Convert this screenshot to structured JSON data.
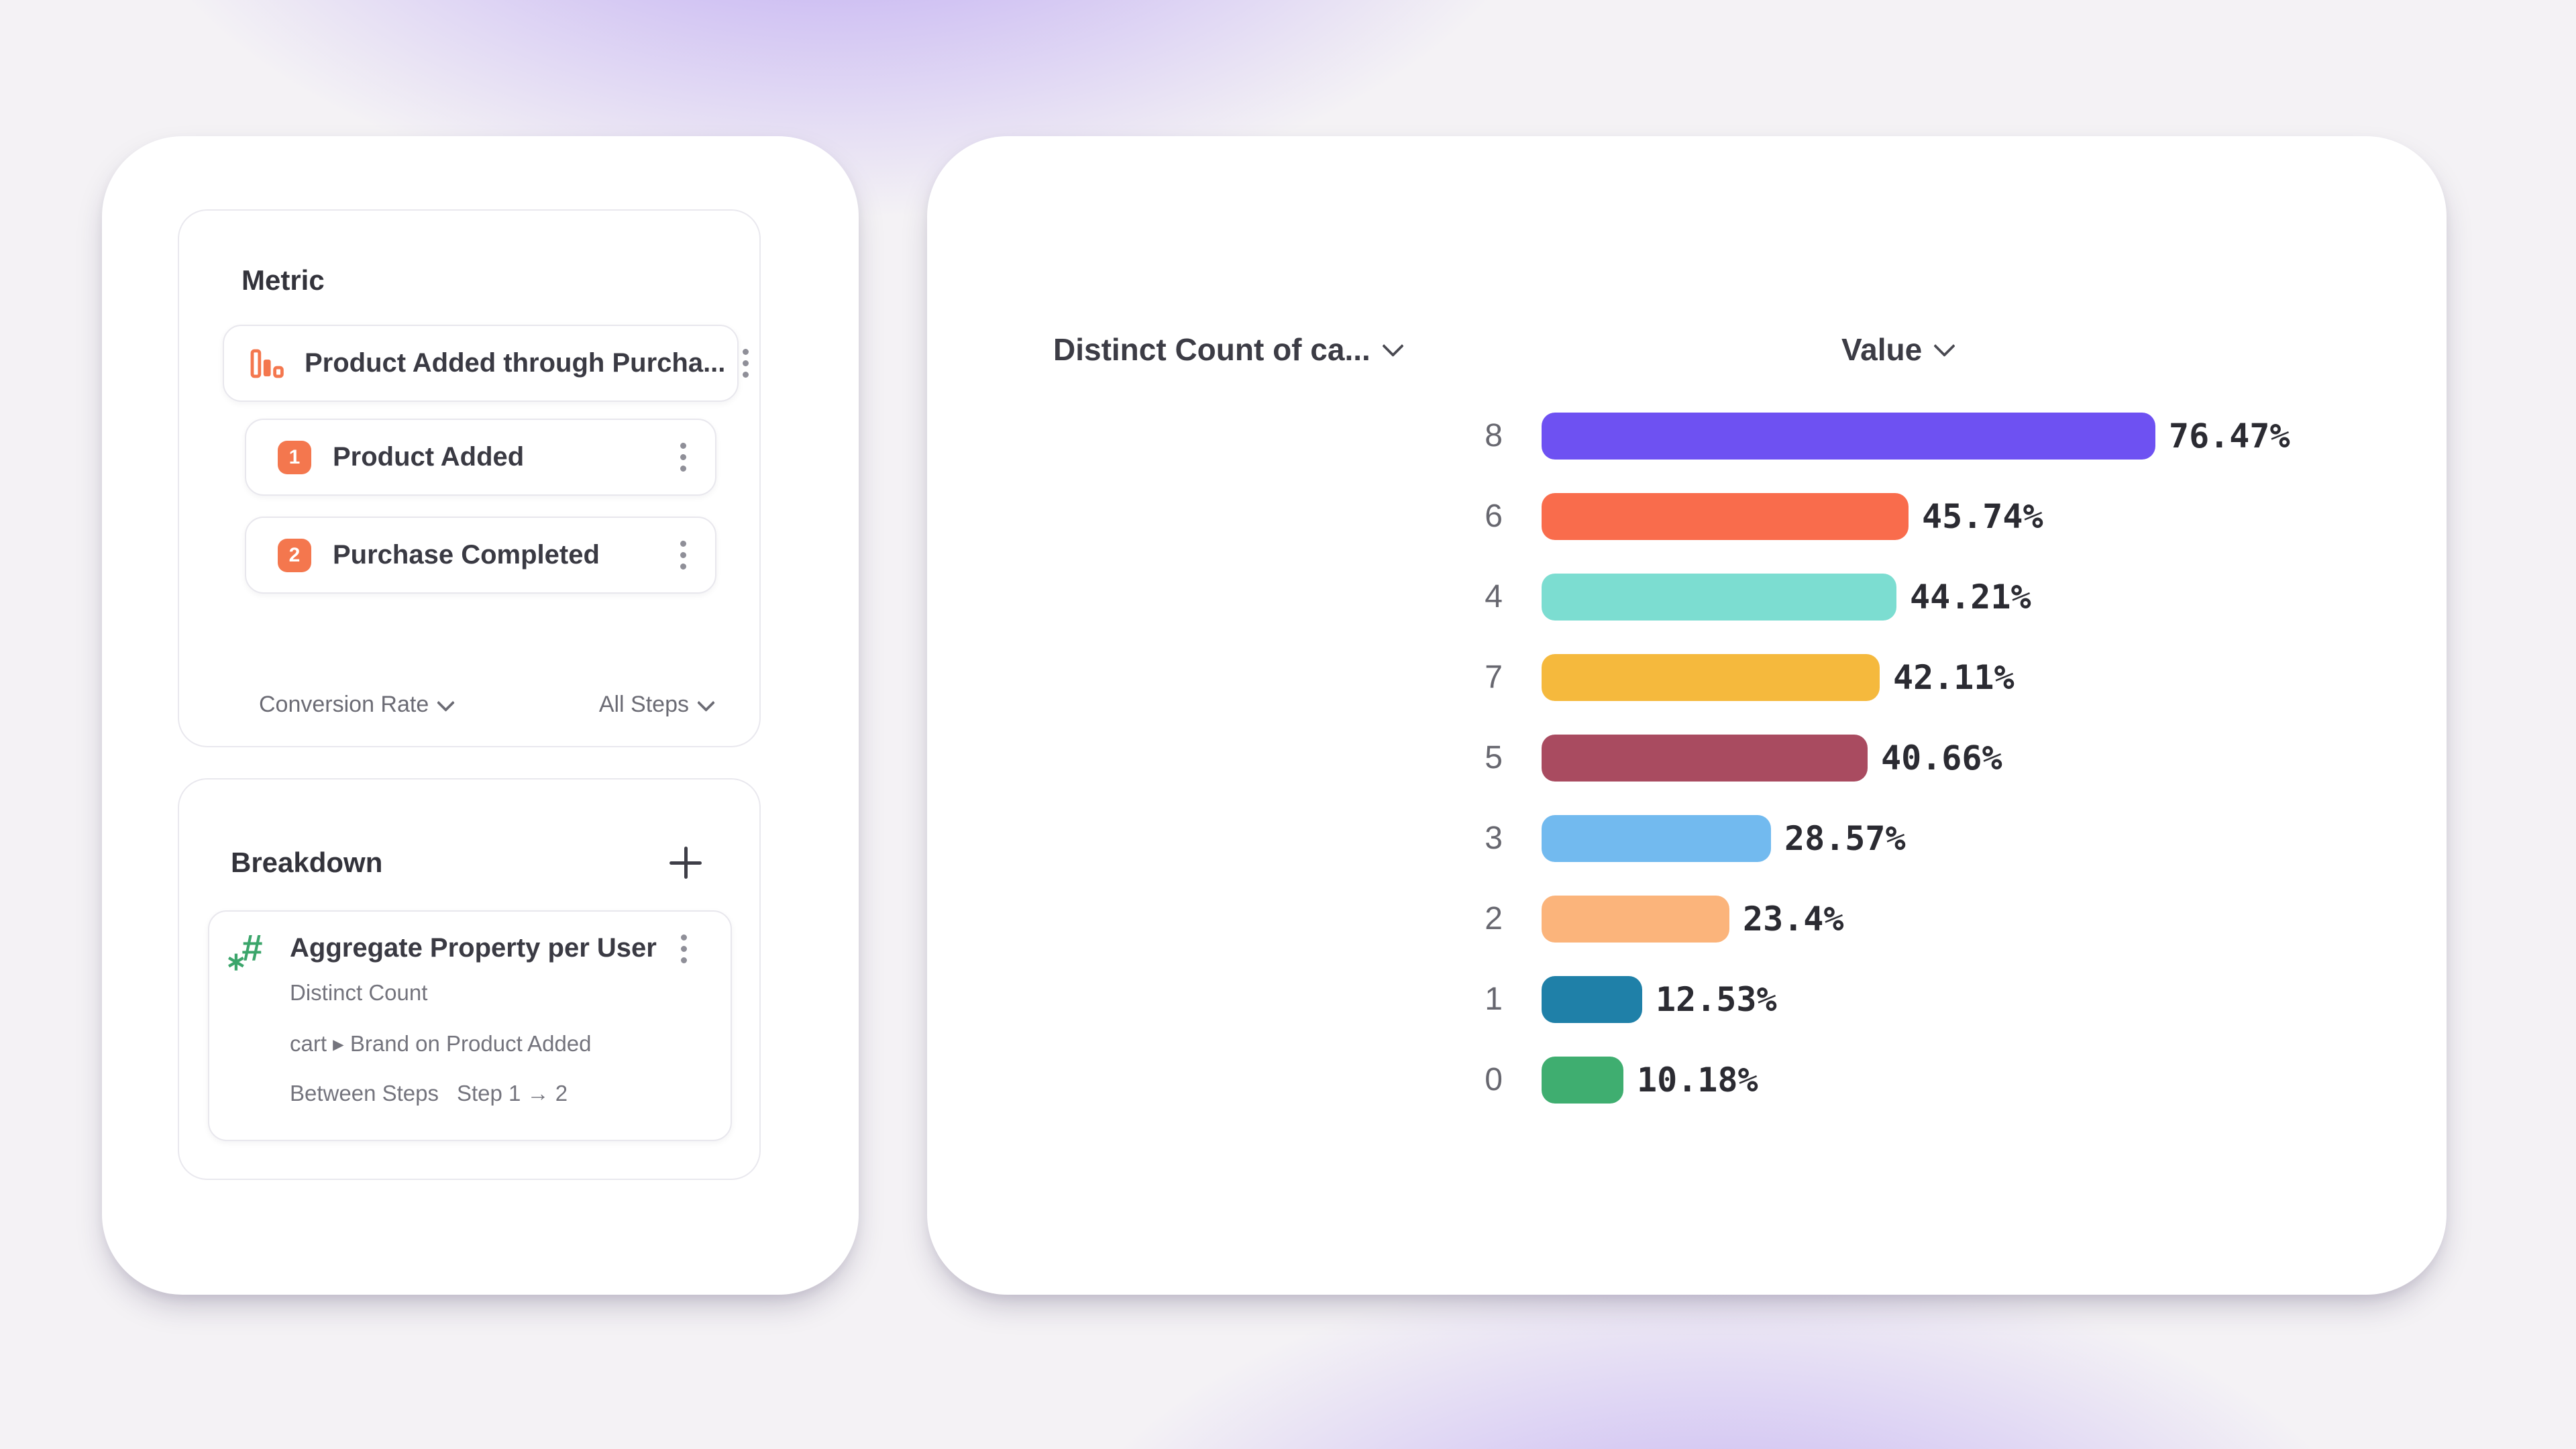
{
  "left_panel": {
    "metric": {
      "title": "Metric",
      "funnel_label": "Product Added through Purcha...",
      "steps": [
        {
          "index": "1",
          "label": "Product Added"
        },
        {
          "index": "2",
          "label": "Purchase Completed"
        }
      ],
      "footer": {
        "left_dropdown": "Conversion Rate",
        "right_dropdown": "All Steps"
      }
    },
    "breakdown": {
      "title": "Breakdown",
      "add_icon": "+",
      "item": {
        "hash_icon": "#",
        "star_icon": "∗",
        "title": "Aggregate Property per User",
        "aggregation": "Distinct Count",
        "property": "cart ▸ Brand on Product Added",
        "between_label": "Between Steps",
        "between_value": "Step 1 → 2"
      }
    },
    "accent_orange": "#F4774E",
    "accent_green": "#3BA56B"
  },
  "chart_data": {
    "type": "bar",
    "orientation": "horizontal",
    "col_headers": [
      "Distinct Count of ca...",
      "Value"
    ],
    "categories": [
      "8",
      "6",
      "4",
      "7",
      "5",
      "3",
      "2",
      "1",
      "0"
    ],
    "values": [
      76.47,
      45.74,
      44.21,
      42.11,
      40.66,
      28.57,
      23.4,
      12.53,
      10.18
    ],
    "labels": [
      "76.47%",
      "45.74%",
      "44.21%",
      "42.11%",
      "40.66%",
      "28.57%",
      "23.4%",
      "12.53%",
      "10.18%"
    ],
    "colors": [
      "#6E51F2",
      "#F96C4C",
      "#7CDDD1",
      "#F5B93D",
      "#A94B60",
      "#72BAEF",
      "#FBB47B",
      "#1F80A8",
      "#3FAE70"
    ],
    "xlim": [
      0,
      100
    ],
    "ylabel": "",
    "xlabel": "",
    "legend": false,
    "grid": false
  }
}
